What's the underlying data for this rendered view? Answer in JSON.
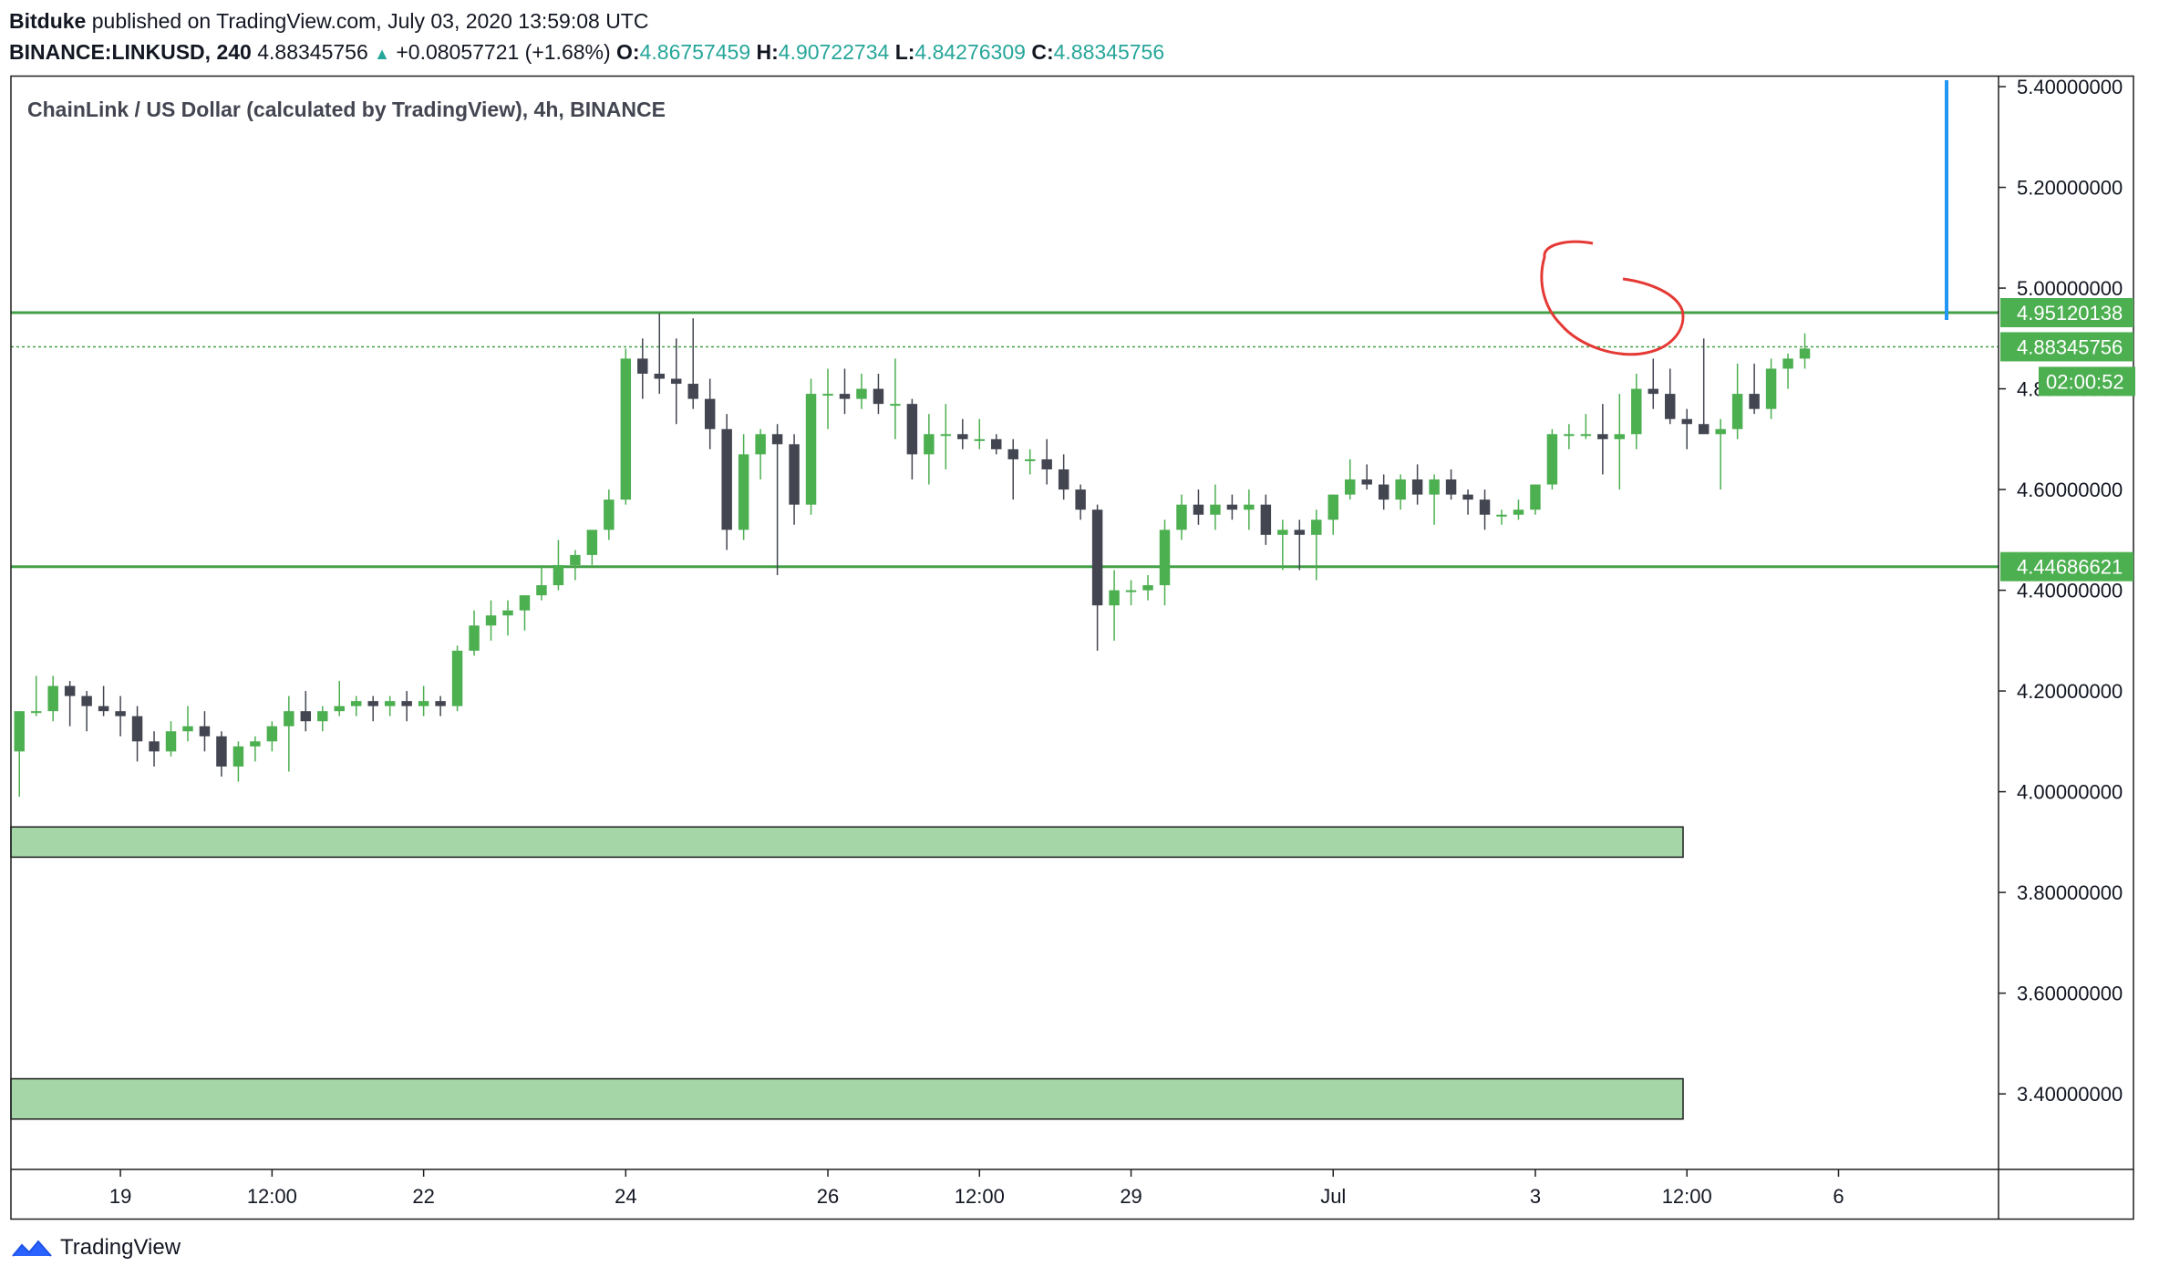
{
  "header": {
    "author": "Bitduke",
    "published_text": "published on TradingView.com, July 03, 2020 13:59:08 UTC",
    "symbol": "BINANCE:LINKUSD, 240",
    "last_price": "4.88345756",
    "change": "+0.08057721 (+1.68%)",
    "o_label": "O:",
    "o_value": "4.86757459",
    "h_label": "H:",
    "h_value": "4.90722734",
    "l_label": "L:",
    "l_value": "4.84276309",
    "c_label": "C:",
    "c_value": "4.88345756"
  },
  "footer": {
    "brand": "TradingView"
  },
  "colors": {
    "up": "#4caf50",
    "down": "#434651",
    "level_line": "#43a047",
    "zone_fill": "#a5d6a7",
    "annotation": "#e53935",
    "marker": "#2196f3"
  },
  "chart_data": {
    "type": "candlestick",
    "title": "ChainLink / US Dollar (calculated by TradingView), 4h, BINANCE",
    "ylim": [
      3.25,
      5.42
    ],
    "y_ticks": [
      {
        "value": 5.4,
        "label": "5.40000000"
      },
      {
        "value": 5.2,
        "label": "5.20000000"
      },
      {
        "value": 5.0,
        "label": "5.00000000"
      },
      {
        "value": 4.8,
        "label": "4.80000000"
      },
      {
        "value": 4.6,
        "label": "4.60000000"
      },
      {
        "value": 4.4,
        "label": "4.40000000"
      },
      {
        "value": 4.2,
        "label": "4.20000000"
      },
      {
        "value": 4.0,
        "label": "4.00000000"
      },
      {
        "value": 3.8,
        "label": "3.80000000"
      },
      {
        "value": 3.6,
        "label": "3.60000000"
      },
      {
        "value": 3.4,
        "label": "3.40000000"
      }
    ],
    "x_ticks": [
      {
        "bar": 6.5,
        "label": "19"
      },
      {
        "bar": 15.5,
        "label": "12:00"
      },
      {
        "bar": 24.5,
        "label": "22"
      },
      {
        "bar": 36.5,
        "label": "24"
      },
      {
        "bar": 48.5,
        "label": "26"
      },
      {
        "bar": 57.5,
        "label": "12:00"
      },
      {
        "bar": 66.5,
        "label": "29"
      },
      {
        "bar": 78.5,
        "label": "Jul"
      },
      {
        "bar": 90.5,
        "label": "3"
      },
      {
        "bar": 99.5,
        "label": "12:00"
      },
      {
        "bar": 108.5,
        "label": "6"
      }
    ],
    "bars_visible": 118,
    "candles": [
      [
        4.08,
        4.16,
        3.99,
        4.16
      ],
      [
        4.16,
        4.23,
        4.15,
        4.16
      ],
      [
        4.16,
        4.23,
        4.14,
        4.21
      ],
      [
        4.21,
        4.22,
        4.13,
        4.19
      ],
      [
        4.19,
        4.2,
        4.12,
        4.17
      ],
      [
        4.17,
        4.21,
        4.15,
        4.16
      ],
      [
        4.16,
        4.19,
        4.11,
        4.15
      ],
      [
        4.15,
        4.17,
        4.06,
        4.1
      ],
      [
        4.1,
        4.12,
        4.05,
        4.08
      ],
      [
        4.08,
        4.14,
        4.07,
        4.12
      ],
      [
        4.12,
        4.17,
        4.1,
        4.13
      ],
      [
        4.13,
        4.16,
        4.08,
        4.11
      ],
      [
        4.11,
        4.12,
        4.03,
        4.05
      ],
      [
        4.05,
        4.1,
        4.02,
        4.09
      ],
      [
        4.09,
        4.11,
        4.06,
        4.1
      ],
      [
        4.1,
        4.14,
        4.08,
        4.13
      ],
      [
        4.13,
        4.19,
        4.04,
        4.16
      ],
      [
        4.16,
        4.2,
        4.12,
        4.14
      ],
      [
        4.14,
        4.17,
        4.12,
        4.16
      ],
      [
        4.16,
        4.22,
        4.15,
        4.17
      ],
      [
        4.17,
        4.19,
        4.15,
        4.18
      ],
      [
        4.18,
        4.19,
        4.14,
        4.17
      ],
      [
        4.17,
        4.19,
        4.15,
        4.18
      ],
      [
        4.18,
        4.2,
        4.14,
        4.17
      ],
      [
        4.17,
        4.21,
        4.15,
        4.18
      ],
      [
        4.18,
        4.19,
        4.15,
        4.17
      ],
      [
        4.17,
        4.29,
        4.16,
        4.28
      ],
      [
        4.28,
        4.36,
        4.27,
        4.33
      ],
      [
        4.33,
        4.38,
        4.3,
        4.35
      ],
      [
        4.35,
        4.38,
        4.31,
        4.36
      ],
      [
        4.36,
        4.39,
        4.32,
        4.39
      ],
      [
        4.39,
        4.45,
        4.38,
        4.41
      ],
      [
        4.41,
        4.5,
        4.4,
        4.45
      ],
      [
        4.45,
        4.48,
        4.42,
        4.47
      ],
      [
        4.47,
        4.51,
        4.45,
        4.52
      ],
      [
        4.52,
        4.6,
        4.5,
        4.58
      ],
      [
        4.58,
        4.88,
        4.57,
        4.86
      ],
      [
        4.86,
        4.9,
        4.78,
        4.83
      ],
      [
        4.83,
        4.95,
        4.79,
        4.82
      ],
      [
        4.82,
        4.9,
        4.73,
        4.81
      ],
      [
        4.81,
        4.94,
        4.76,
        4.78
      ],
      [
        4.78,
        4.82,
        4.68,
        4.72
      ],
      [
        4.72,
        4.75,
        4.48,
        4.52
      ],
      [
        4.52,
        4.71,
        4.5,
        4.67
      ],
      [
        4.67,
        4.72,
        4.62,
        4.71
      ],
      [
        4.71,
        4.73,
        4.43,
        4.69
      ],
      [
        4.69,
        4.71,
        4.53,
        4.57
      ],
      [
        4.57,
        4.82,
        4.55,
        4.79
      ],
      [
        4.79,
        4.84,
        4.72,
        4.79
      ],
      [
        4.79,
        4.84,
        4.75,
        4.78
      ],
      [
        4.78,
        4.83,
        4.76,
        4.8
      ],
      [
        4.8,
        4.83,
        4.75,
        4.77
      ],
      [
        4.77,
        4.86,
        4.7,
        4.77
      ],
      [
        4.77,
        4.78,
        4.62,
        4.67
      ],
      [
        4.67,
        4.75,
        4.61,
        4.71
      ],
      [
        4.71,
        4.77,
        4.64,
        4.71
      ],
      [
        4.71,
        4.74,
        4.68,
        4.7
      ],
      [
        4.7,
        4.74,
        4.68,
        4.7
      ],
      [
        4.7,
        4.71,
        4.67,
        4.68
      ],
      [
        4.68,
        4.7,
        4.58,
        4.66
      ],
      [
        4.66,
        4.68,
        4.63,
        4.66
      ],
      [
        4.66,
        4.7,
        4.61,
        4.64
      ],
      [
        4.64,
        4.67,
        4.58,
        4.6
      ],
      [
        4.6,
        4.61,
        4.54,
        4.56
      ],
      [
        4.56,
        4.57,
        4.28,
        4.37
      ],
      [
        4.37,
        4.44,
        4.3,
        4.4
      ],
      [
        4.4,
        4.42,
        4.37,
        4.4
      ],
      [
        4.4,
        4.43,
        4.38,
        4.41
      ],
      [
        4.41,
        4.54,
        4.37,
        4.52
      ],
      [
        4.52,
        4.59,
        4.5,
        4.57
      ],
      [
        4.57,
        4.6,
        4.53,
        4.55
      ],
      [
        4.55,
        4.61,
        4.52,
        4.57
      ],
      [
        4.57,
        4.59,
        4.54,
        4.56
      ],
      [
        4.56,
        4.6,
        4.52,
        4.57
      ],
      [
        4.57,
        4.59,
        4.49,
        4.51
      ],
      [
        4.51,
        4.54,
        4.44,
        4.52
      ],
      [
        4.52,
        4.54,
        4.44,
        4.51
      ],
      [
        4.51,
        4.56,
        4.42,
        4.54
      ],
      [
        4.54,
        4.59,
        4.51,
        4.59
      ],
      [
        4.59,
        4.66,
        4.58,
        4.62
      ],
      [
        4.62,
        4.65,
        4.6,
        4.61
      ],
      [
        4.61,
        4.63,
        4.56,
        4.58
      ],
      [
        4.58,
        4.63,
        4.56,
        4.62
      ],
      [
        4.62,
        4.65,
        4.57,
        4.59
      ],
      [
        4.59,
        4.63,
        4.53,
        4.62
      ],
      [
        4.62,
        4.64,
        4.58,
        4.59
      ],
      [
        4.59,
        4.6,
        4.55,
        4.58
      ],
      [
        4.58,
        4.6,
        4.52,
        4.55
      ],
      [
        4.55,
        4.56,
        4.53,
        4.55
      ],
      [
        4.55,
        4.58,
        4.54,
        4.56
      ],
      [
        4.56,
        4.61,
        4.55,
        4.61
      ],
      [
        4.61,
        4.72,
        4.6,
        4.71
      ],
      [
        4.71,
        4.73,
        4.68,
        4.71
      ],
      [
        4.71,
        4.75,
        4.7,
        4.71
      ],
      [
        4.71,
        4.77,
        4.63,
        4.7
      ],
      [
        4.7,
        4.79,
        4.6,
        4.71
      ],
      [
        4.71,
        4.83,
        4.68,
        4.8
      ],
      [
        4.8,
        4.86,
        4.76,
        4.79
      ],
      [
        4.79,
        4.84,
        4.73,
        4.74
      ],
      [
        4.74,
        4.76,
        4.68,
        4.73
      ],
      [
        4.73,
        4.9,
        4.72,
        4.71
      ],
      [
        4.71,
        4.74,
        4.6,
        4.72
      ],
      [
        4.72,
        4.85,
        4.7,
        4.79
      ],
      [
        4.79,
        4.85,
        4.75,
        4.76
      ],
      [
        4.76,
        4.86,
        4.74,
        4.84
      ],
      [
        4.84,
        4.87,
        4.8,
        4.86
      ],
      [
        4.86,
        4.91,
        4.84,
        4.88
      ]
    ],
    "levels": [
      {
        "value": 4.95120138,
        "label": "4.95120138",
        "style": "solid"
      },
      {
        "value": 4.44686621,
        "label": "4.44686621",
        "style": "solid"
      },
      {
        "value": 4.88345756,
        "label": "4.88345756",
        "style": "dotted"
      }
    ],
    "countdown": "02:00:52",
    "zones": [
      {
        "top": 3.93,
        "bottom": 3.87
      },
      {
        "top": 3.43,
        "bottom": 3.35
      }
    ]
  }
}
